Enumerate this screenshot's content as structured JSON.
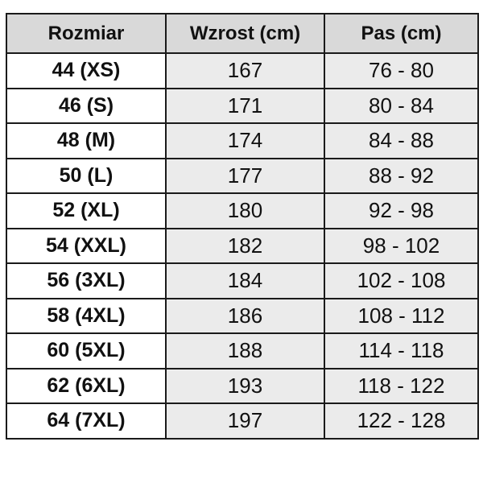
{
  "table": {
    "headers": [
      "Rozmiar",
      "Wzrost (cm)",
      "Pas (cm)"
    ],
    "rows": [
      [
        "44 (XS)",
        "167",
        "76 - 80"
      ],
      [
        "46 (S)",
        "171",
        "80 - 84"
      ],
      [
        "48 (M)",
        "174",
        "84 - 88"
      ],
      [
        "50 (L)",
        "177",
        "88 - 92"
      ],
      [
        "52 (XL)",
        "180",
        "92 - 98"
      ],
      [
        "54 (XXL)",
        "182",
        "98 - 102"
      ],
      [
        "56 (3XL)",
        "184",
        "102 - 108"
      ],
      [
        "58 (4XL)",
        "186",
        "108 - 112"
      ],
      [
        "60 (5XL)",
        "188",
        "114 - 118"
      ],
      [
        "62 (6XL)",
        "193",
        "118 - 122"
      ],
      [
        "64 (7XL)",
        "197",
        "122 - 128"
      ]
    ]
  },
  "colors": {
    "header_background": "#d9d9d9",
    "data_cell_background": "#ebebeb",
    "border": "#1a1a1a"
  }
}
